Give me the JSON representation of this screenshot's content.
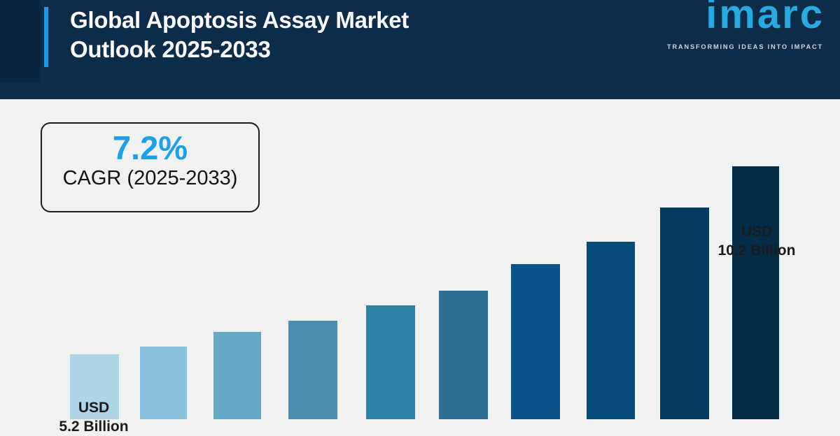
{
  "header": {
    "title_line1": "Global Apoptosis Assay Market",
    "title_line2": "Outlook 2025-2033",
    "logo_text": "imarc",
    "logo_tagline": "TRANSFORMING IDEAS INTO IMPACT"
  },
  "cagr_box": {
    "value": "7.2%",
    "label": "CAGR (2025-2033)"
  },
  "chart_data": {
    "type": "bar",
    "title": "Global Apoptosis Assay Market Outlook 2025-2033",
    "unit": "USD Billion",
    "values": [
      5.2,
      5.4,
      5.8,
      6.1,
      6.5,
      6.9,
      7.6,
      8.2,
      9.1,
      10.2
    ],
    "bar_colors": [
      "#aed5e6",
      "#8cc2db",
      "#67a8c7",
      "#4a90ae",
      "#2f81a4",
      "#2d7096",
      "#09538a",
      "#064a78",
      "#053b60",
      "#042c49"
    ],
    "first_bar_label": {
      "line1": "USD",
      "line2": "5.2 Billion"
    },
    "last_bar_label": {
      "line1": "USD",
      "line2": "10.2 Billion"
    },
    "cagr": "7.2%",
    "x_axis_labels_visible": false,
    "gridlines": false,
    "legend": false
  },
  "colors": {
    "page_bg": "#eff1f2",
    "header_bg": "#0d2c4a",
    "accent_blue": "#1f98e8",
    "logo_blue": "#29a9e1",
    "cagr_blue": "#1e9fe6",
    "label_dark": "#1b1b1b"
  }
}
